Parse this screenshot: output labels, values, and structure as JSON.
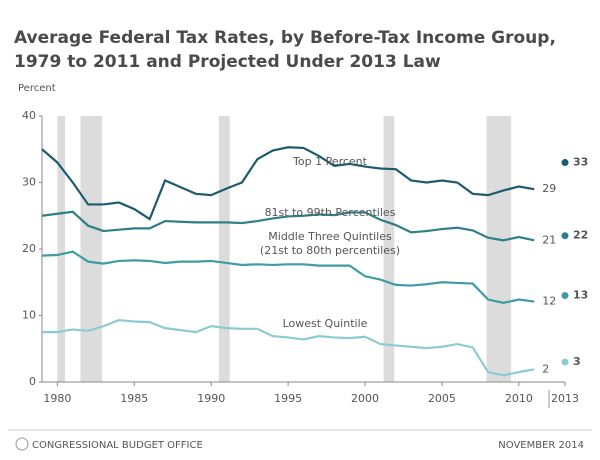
{
  "chart_data": {
    "type": "line",
    "title": [
      "Average Federal Tax Rates, by Before-Tax Income Group,",
      "1979 to 2011 and Projected Under 2013 Law"
    ],
    "y_label": "Percent",
    "source": "CONGRESSIONAL BUDGET OFFICE",
    "date": "NOVEMBER 2014",
    "x": [
      1979,
      1980,
      1981,
      1982,
      1983,
      1984,
      1985,
      1986,
      1987,
      1988,
      1989,
      1990,
      1991,
      1992,
      1993,
      1994,
      1995,
      1996,
      1997,
      1998,
      1999,
      2000,
      2001,
      2002,
      2003,
      2004,
      2005,
      2006,
      2007,
      2008,
      2009,
      2010,
      2011
    ],
    "xlim": [
      1979,
      2013
    ],
    "xticks": [
      1980,
      1985,
      1990,
      1995,
      2000,
      2005,
      2010,
      2013
    ],
    "ylim": [
      0,
      40
    ],
    "yticks": [
      0,
      10,
      20,
      30,
      40
    ],
    "projection_x": 2013,
    "recessions": [
      [
        1980,
        1980.5
      ],
      [
        1981.5,
        1982.9
      ],
      [
        1990.5,
        1991.2
      ],
      [
        2001.2,
        2001.9
      ],
      [
        2007.9,
        2009.5
      ]
    ],
    "recession_color": "#dcdcdc",
    "series": [
      {
        "name": "Top 1 Percent",
        "color": "#1c5b6e",
        "values": [
          35,
          33,
          30,
          26.7,
          26.7,
          27,
          26,
          24.5,
          30.3,
          29.3,
          28.3,
          28.1,
          29.1,
          30,
          33.5,
          34.8,
          35.3,
          35.2,
          34,
          32.5,
          32.8,
          32.4,
          32.1,
          32,
          30.3,
          30,
          30.3,
          30,
          28.3,
          28.1,
          28.8,
          29.4,
          29
        ],
        "end_label": 29,
        "projected": 33
      },
      {
        "name": "81st to 99th Percentiles",
        "color": "#2e7f88",
        "values": [
          25,
          25.3,
          25.6,
          23.5,
          22.7,
          22.9,
          23.1,
          23.1,
          24.2,
          24.1,
          24,
          24,
          24,
          23.9,
          24.2,
          24.6,
          24.9,
          25,
          25.2,
          25.1,
          25.5,
          25.5,
          24.4,
          23.6,
          22.5,
          22.7,
          23,
          23.2,
          22.8,
          21.7,
          21.3,
          21.8,
          21.3
        ],
        "end_label": 21,
        "projected": 22
      },
      {
        "name": "Middle Three Quintiles",
        "note": "(21st to 80th percentiles)",
        "color": "#3f9ba5",
        "values": [
          19,
          19.1,
          19.6,
          18.1,
          17.8,
          18.2,
          18.3,
          18.2,
          17.9,
          18.1,
          18.1,
          18.2,
          17.9,
          17.6,
          17.7,
          17.6,
          17.7,
          17.7,
          17.5,
          17.5,
          17.5,
          15.9,
          15.4,
          14.6,
          14.5,
          14.7,
          15,
          14.9,
          14.8,
          12.4,
          11.9,
          12.4,
          12.1
        ],
        "end_label": 12,
        "projected": 13
      },
      {
        "name": "Lowest Quintile",
        "color": "#8ccbd3",
        "values": [
          7.5,
          7.5,
          7.9,
          7.7,
          8.4,
          9.3,
          9.1,
          9,
          8.1,
          7.8,
          7.5,
          8.4,
          8.1,
          8,
          8,
          6.9,
          6.7,
          6.4,
          6.9,
          6.7,
          6.6,
          6.8,
          5.7,
          5.5,
          5.3,
          5.1,
          5.3,
          5.7,
          5.2,
          1.5,
          1,
          1.5,
          1.9
        ],
        "end_label": 2,
        "projected": 3
      }
    ]
  }
}
